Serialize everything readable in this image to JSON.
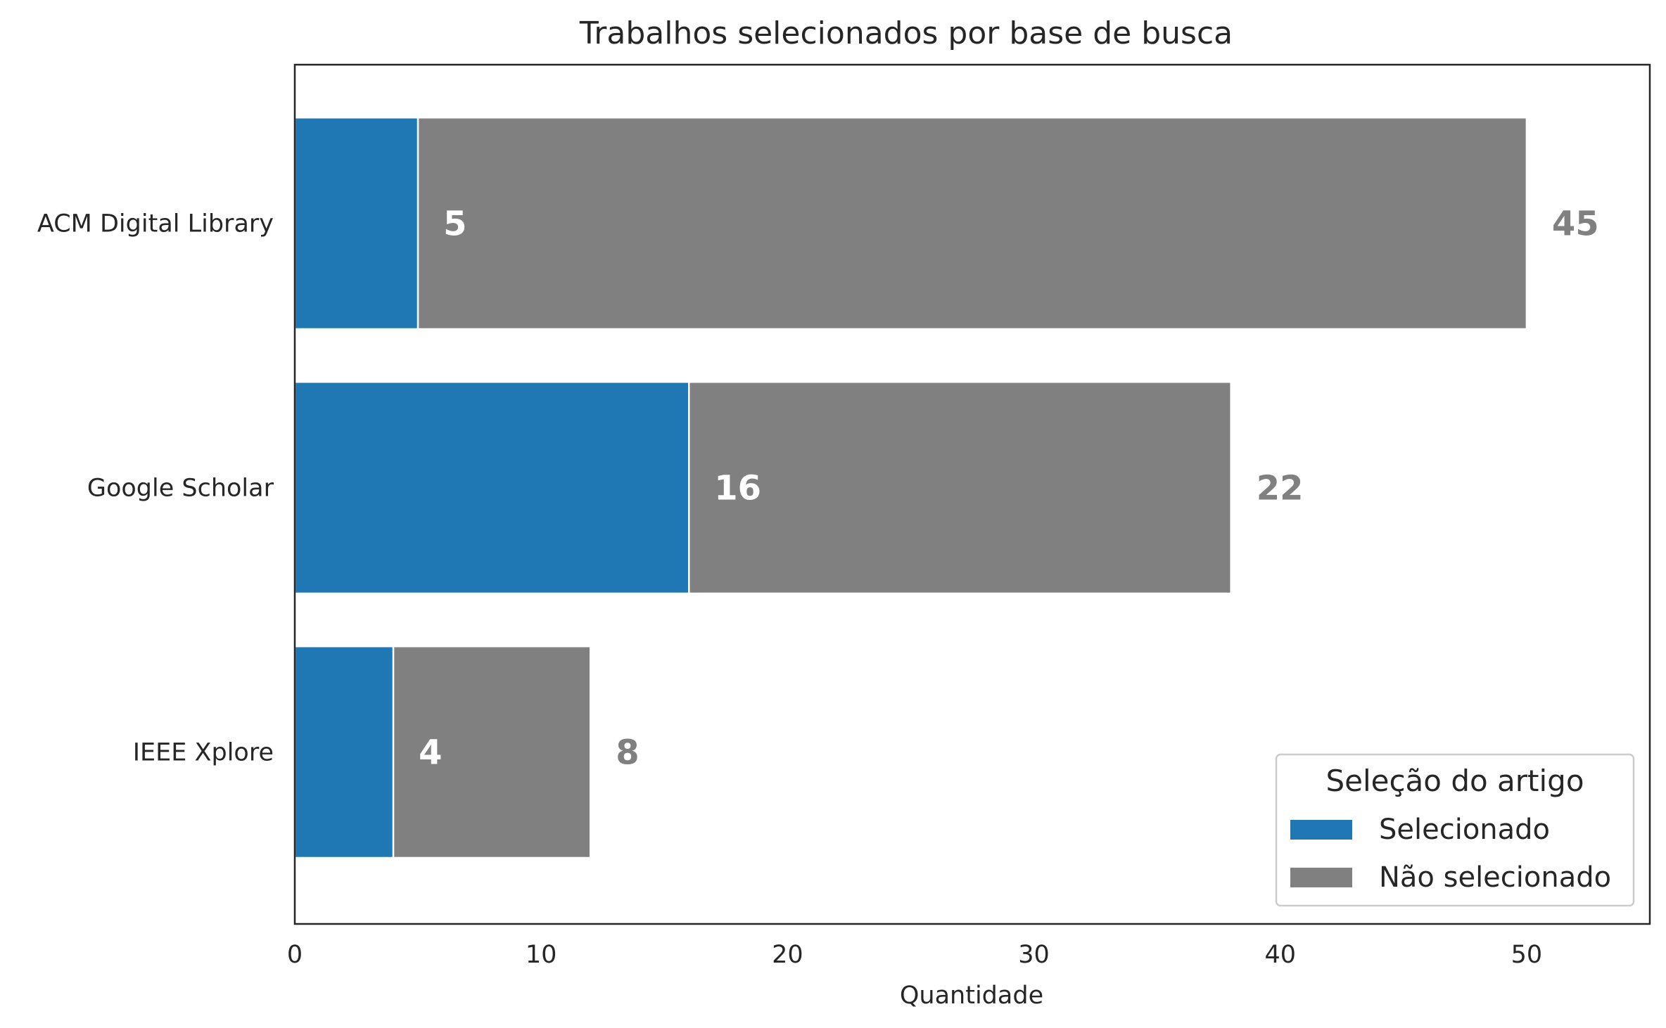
{
  "chart_data": {
    "type": "bar",
    "orientation": "horizontal",
    "stacked": true,
    "title": "Trabalhos selecionados por base de busca",
    "xlabel": "Quantidade",
    "ylabel": "",
    "xlim": [
      0,
      55
    ],
    "xticks": [
      0,
      10,
      20,
      30,
      40,
      50
    ],
    "categories": [
      "ACM Digital Library",
      "Google Scholar",
      "IEEE Xplore"
    ],
    "series": [
      {
        "name": "Selecionado",
        "values": [
          5,
          16,
          4
        ],
        "color": "#1f77b4"
      },
      {
        "name": "Não selecionado",
        "values": [
          45,
          22,
          8
        ],
        "color": "#808080"
      }
    ],
    "legend": {
      "title": "Seleção do artigo",
      "placement": "lower-right"
    },
    "grid": false
  }
}
